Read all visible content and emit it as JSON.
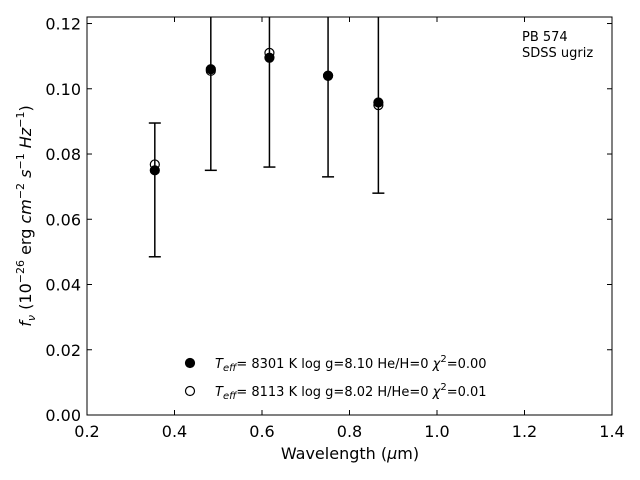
{
  "chart_data": {
    "type": "scatter",
    "xlabel": "Wavelength (μm)",
    "ylabel": "f_ν (10^-26 erg cm^-2 s^-1 Hz^-1)",
    "xlim": [
      0.2,
      1.4
    ],
    "ylim": [
      0.0,
      0.122
    ],
    "x_ticks": [
      0.2,
      0.4,
      0.6,
      0.8,
      1.0,
      1.2,
      1.4
    ],
    "x_tick_labels": [
      "0.2",
      "0.4",
      "0.6",
      "0.8",
      "1.0",
      "1.2",
      "1.4"
    ],
    "y_ticks": [
      0.0,
      0.02,
      0.04,
      0.06,
      0.08,
      0.1,
      0.12
    ],
    "y_tick_labels": [
      "0.00",
      "0.02",
      "0.04",
      "0.06",
      "0.08",
      "0.10",
      "0.12"
    ],
    "annotation": [
      "PB 574",
      "SDSS ugriz"
    ],
    "observed": {
      "x": [
        0.355,
        0.483,
        0.617,
        0.751,
        0.866
      ],
      "y_low": [
        0.0485,
        0.075,
        0.076,
        0.073,
        0.068
      ],
      "y_high": [
        0.0895,
        0.122,
        0.122,
        0.122,
        0.122
      ],
      "y_high_clipped": [
        false,
        true,
        true,
        true,
        true
      ]
    },
    "series": [
      {
        "marker": "filled",
        "legend": {
          "prefix": "T",
          "sub": "eff",
          "rest": "=  8301 K  log g=8.10  He/H=0  χ",
          "sup": "2",
          "tail": "=0.00"
        },
        "x": [
          0.355,
          0.483,
          0.617,
          0.751,
          0.866
        ],
        "y": [
          0.075,
          0.106,
          0.1095,
          0.104,
          0.0958
        ]
      },
      {
        "marker": "open",
        "legend": {
          "prefix": "T",
          "sub": "eff",
          "rest": "=  8113 K  log g=8.02  H/He=0  χ",
          "sup": "2",
          "tail": "=0.01"
        },
        "x": [
          0.355,
          0.483,
          0.617,
          0.751,
          0.866
        ],
        "y": [
          0.0768,
          0.1055,
          0.111,
          0.104,
          0.095
        ]
      }
    ]
  }
}
